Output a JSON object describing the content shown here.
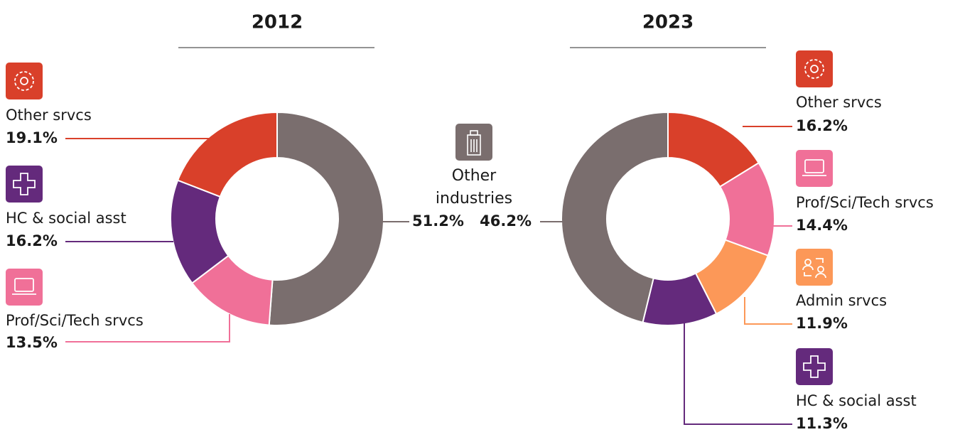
{
  "chart_data": [
    {
      "type": "pie",
      "title": "2012",
      "donut": true,
      "categories": [
        "Other industries",
        "Prof/Sci/Tech srvcs",
        "HC & social asst",
        "Other srvcs"
      ],
      "values": [
        51.2,
        13.5,
        16.2,
        19.1
      ],
      "value_labels": [
        "51.2%",
        "13.5%",
        "16.2%",
        "19.1%"
      ],
      "colors": [
        "#7a6e6e",
        "#f07098",
        "#642a7c",
        "#d9402a"
      ]
    },
    {
      "type": "pie",
      "title": "2023",
      "donut": true,
      "categories": [
        "Other srvcs",
        "Prof/Sci/Tech srvcs",
        "Admin srvcs",
        "HC & social asst",
        null
      ],
      "values": [
        16.2,
        14.4,
        11.9,
        11.3,
        46.2
      ],
      "value_labels": [
        "16.2%",
        "14.4%",
        "11.9%",
        "11.3%",
        "46.2%"
      ],
      "colors": [
        "#d9402a",
        "#f07098",
        "#fc9858",
        "#642a7c",
        "#7a6e6e"
      ]
    }
  ]
}
